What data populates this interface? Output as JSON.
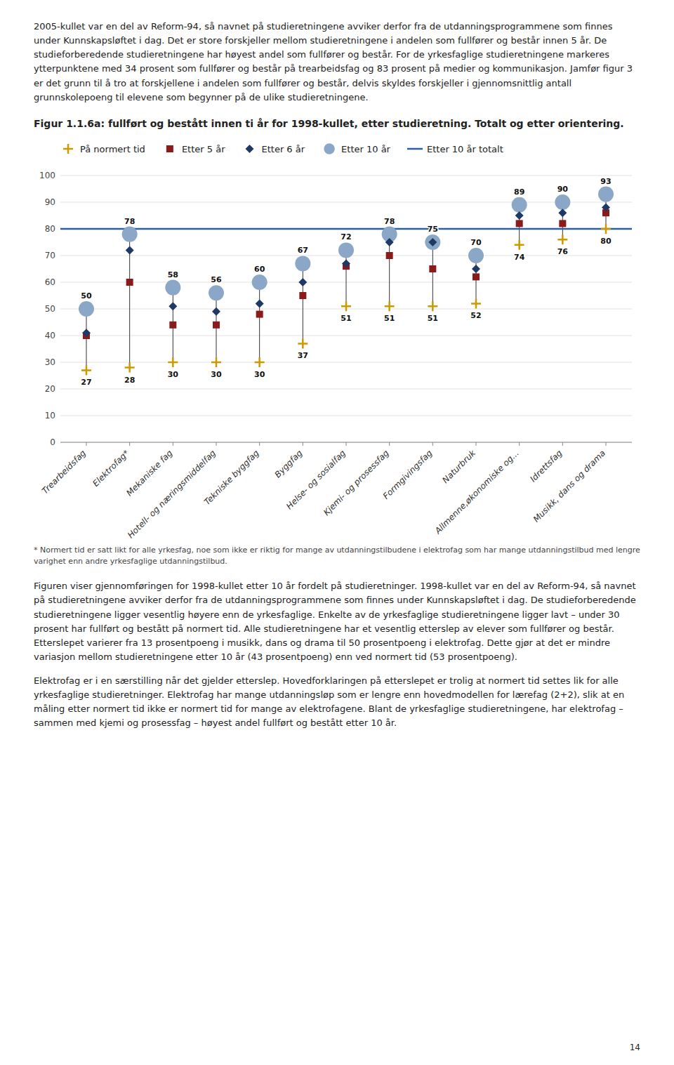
{
  "top_body_text": "2005-kullet var en del av Reform-94, så navnet på studieretningene avviker derfor fra de utdanningsprogrammene som finnes under Kunnskapsløftet i dag. Det er store forskjeller mellom studieretningene i andelen som fullfører og består innen 5 år. De studieforberedende studieretningene har høyest andel som fullfører og består. For de yrkesfaglige studieretningene markeres ytterpunktene med 34 prosent som fullfører og består på trearbeidsfag og 83 prosent på medier og kommunikasjon. Jamfør figur 3 er det grunn til å tro at forskjellene i andelen som fullfører og består, delvis skyldes forskjeller i gjennomsnittlig antall grunnskolepoeng til elevene som begynner på de ulike studieretningene.",
  "chart_data": {
    "type": "scatter",
    "title": "Figur 1.1.6a: fullført og bestått innen ti år for 1998-kullet, etter studieretning. Totalt og etter orientering.",
    "categories": [
      "Trearbeidsfag",
      "Elektrofag*",
      "Mekaniske fag",
      "Hotell- og næringsmiddelfag",
      "Tekniske byggfag",
      "Byggfag",
      "Helse- og sosialfag",
      "Kjemi- og prosessfag",
      "Formgivingsfag",
      "Naturbruk",
      "Allmenne,økonomiske og...",
      "Idrettsfag",
      "Musikk, dans og drama"
    ],
    "series": [
      {
        "name": "På normert tid",
        "color": "#CC9900",
        "marker": "plus",
        "data_labels": true,
        "values": [
          27,
          28,
          30,
          30,
          30,
          37,
          51,
          51,
          51,
          52,
          74,
          76,
          80
        ]
      },
      {
        "name": "Etter 5 år",
        "color": "#8B1A1A",
        "marker": "square",
        "values": [
          40,
          60,
          44,
          44,
          48,
          55,
          66,
          70,
          65,
          62,
          82,
          82,
          86
        ]
      },
      {
        "name": "Etter 6 år",
        "color": "#1F3864",
        "marker": "diamond",
        "values": [
          41,
          72,
          51,
          49,
          52,
          60,
          67,
          75,
          75,
          65,
          85,
          86,
          88
        ]
      },
      {
        "name": "Etter 10 år",
        "color": "#8BA7C7",
        "marker": "circle",
        "data_labels": true,
        "values": [
          50,
          78,
          58,
          56,
          60,
          67,
          72,
          78,
          75,
          70,
          89,
          90,
          93
        ]
      }
    ],
    "reference_lines": [
      {
        "name": "Etter 10 år totalt",
        "value": 80,
        "color": "#2E5FA3"
      }
    ],
    "ylim": [
      0,
      100
    ],
    "yticks": [
      0,
      10,
      20,
      30,
      40,
      50,
      60,
      70,
      80,
      90,
      100
    ],
    "grid": true,
    "legend": "top"
  },
  "footnote": "* Normert tid er satt likt for alle yrkesfag, noe som ikke er riktig for mange av utdanningstilbudene i elektrofag som har mange utdanningstilbud med lengre varighet enn andre yrkesfaglige utdanningstilbud.",
  "body_text": [
    "Figuren viser gjennomføringen for 1998-kullet etter 10 år fordelt på studieretninger. 1998-kullet var en del av Reform-94, så navnet på studieretningene avviker derfor fra de utdanningsprogrammene som finnes under Kunnskapsløftet i dag. De studieforberedende studieretningene ligger vesentlig høyere enn de yrkesfaglige. Enkelte av de yrkesfaglige studieretningene ligger lavt – under 30 prosent har fullført og bestått på normert tid. Alle studieretningene har et vesentlig etterslep av elever som fullfører og består. Etterslepet varierer fra 13 prosentpoeng i musikk, dans og drama til 50 prosentpoeng i elektrofag. Dette gjør at det er mindre variasjon mellom studieretningene etter 10 år (43 prosentpoeng) enn ved normert tid (53 prosentpoeng).",
    "Elektrofag er i en særstilling når det gjelder etterslep. Hovedforklaringen på etterslepet er trolig at normert tid settes lik for alle yrkesfaglige studieretninger. Elektrofag har mange utdanningsløp som er lengre enn hovedmodellen for lærefag (2+2), slik at en måling etter normert tid ikke er normert tid for mange av elektrofagene. Blant de yrkesfaglige studieretningene, har elektrofag – sammen med kjemi og prosessfag – høyest andel fullført og bestått etter 10 år."
  ],
  "page_number": "14"
}
